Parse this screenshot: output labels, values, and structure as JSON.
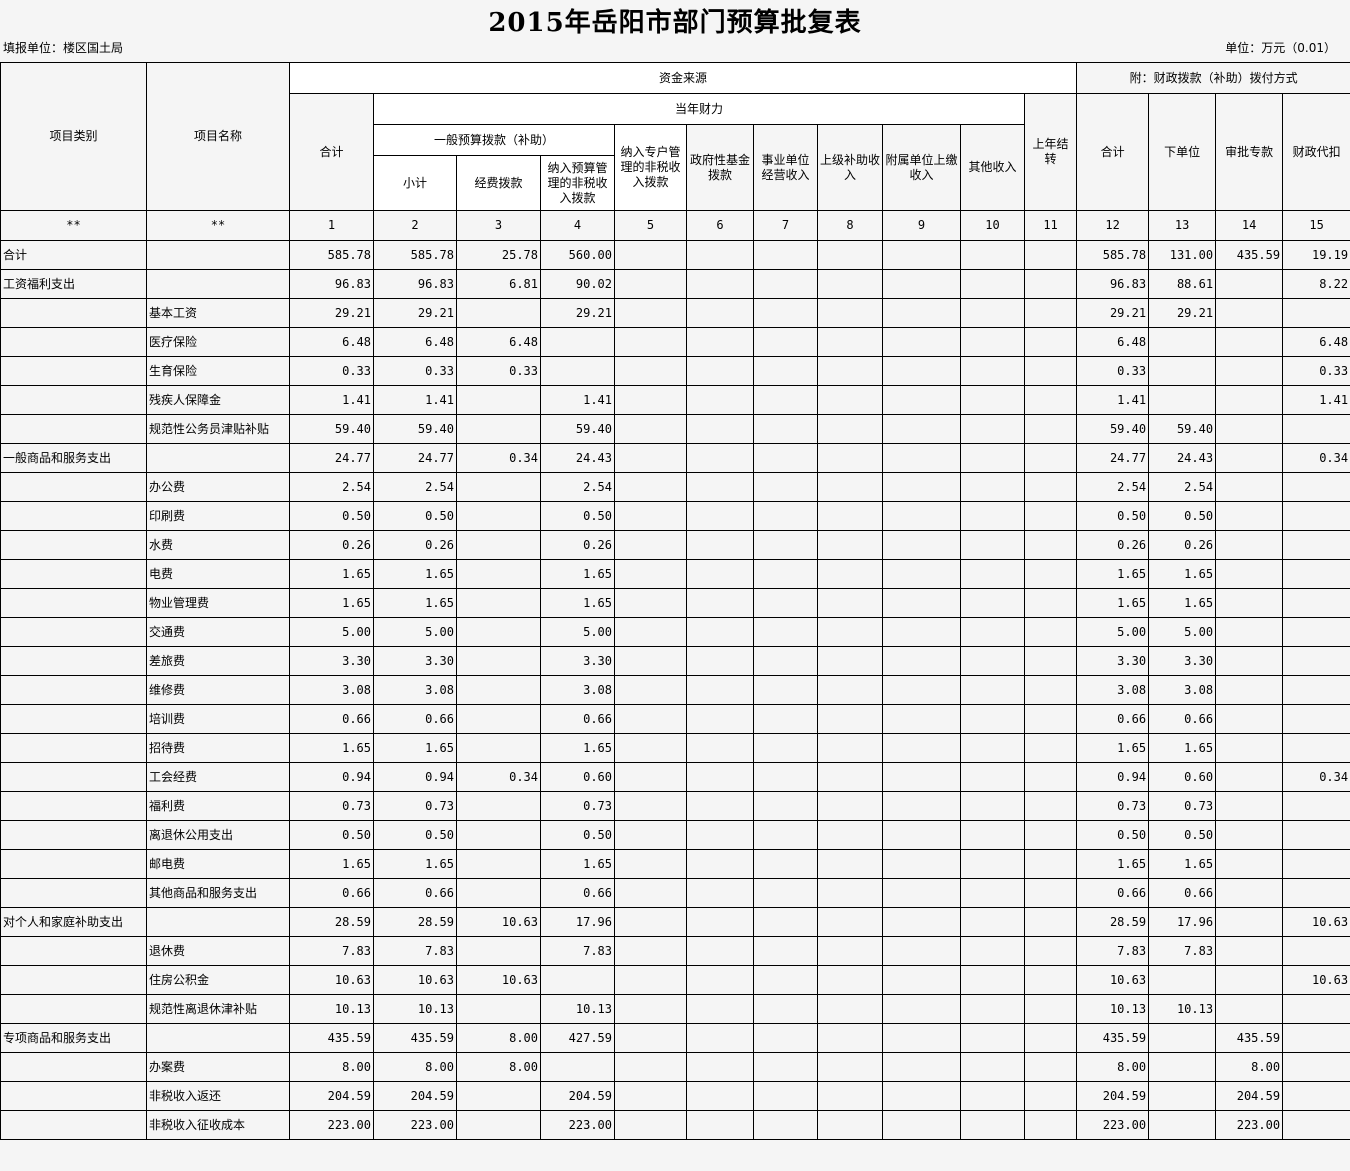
{
  "title": "2015年岳阳市部门预算批复表",
  "reporting_unit": "填报单位：楼区国土局",
  "unit": "单位：万元（0.01）",
  "header": {
    "category": "项目类别",
    "name": "项目名称",
    "fund_source": "资金来源",
    "attachment": "附：财政拨款（补助）拨付方式",
    "total": "合计",
    "current_year": "当年财力",
    "general_budget": "一般预算拨款（补助）",
    "subtotal": "小计",
    "operating_funds": "经费拨款",
    "budget_nontax": "纳入预算管理的非税收入拨款",
    "special_nontax": "纳入专户管理的非税收入拨款",
    "gov_fund": "政府性基金拨款",
    "business_income": "事业单位经营收入",
    "superior_subsidy": "上级补助收入",
    "affiliate_income": "附属单位上缴收入",
    "other_income": "其他收入",
    "carryover": "上年结转",
    "pay_total": "合计",
    "subordinate": "下单位",
    "approved_special": "审批专款",
    "fiscal_withhold": "财政代扣",
    "index_row": [
      "**",
      "**",
      "1",
      "2",
      "3",
      "4",
      "5",
      "6",
      "7",
      "8",
      "9",
      "10",
      "11",
      "12",
      "13",
      "14",
      "15"
    ]
  },
  "rows": [
    [
      "合计",
      "",
      "585.78",
      "585.78",
      "25.78",
      "560.00",
      "585.78",
      "131.00",
      "435.59",
      "19.19"
    ],
    [
      "工资福利支出",
      "",
      "96.83",
      "96.83",
      "6.81",
      "90.02",
      "96.83",
      "88.61",
      "",
      "8.22"
    ],
    [
      "",
      "基本工资",
      "29.21",
      "29.21",
      "",
      "29.21",
      "29.21",
      "29.21",
      "",
      ""
    ],
    [
      "",
      "医疗保险",
      "6.48",
      "6.48",
      "6.48",
      "",
      "6.48",
      "",
      "",
      "6.48"
    ],
    [
      "",
      "生育保险",
      "0.33",
      "0.33",
      "0.33",
      "",
      "0.33",
      "",
      "",
      "0.33"
    ],
    [
      "",
      "残疾人保障金",
      "1.41",
      "1.41",
      "",
      "1.41",
      "1.41",
      "",
      "",
      "1.41"
    ],
    [
      "",
      "规范性公务员津贴补贴",
      "59.40",
      "59.40",
      "",
      "59.40",
      "59.40",
      "59.40",
      "",
      ""
    ],
    [
      "一般商品和服务支出",
      "",
      "24.77",
      "24.77",
      "0.34",
      "24.43",
      "24.77",
      "24.43",
      "",
      "0.34"
    ],
    [
      "",
      "办公费",
      "2.54",
      "2.54",
      "",
      "2.54",
      "2.54",
      "2.54",
      "",
      ""
    ],
    [
      "",
      "印刷费",
      "0.50",
      "0.50",
      "",
      "0.50",
      "0.50",
      "0.50",
      "",
      ""
    ],
    [
      "",
      "水费",
      "0.26",
      "0.26",
      "",
      "0.26",
      "0.26",
      "0.26",
      "",
      ""
    ],
    [
      "",
      "电费",
      "1.65",
      "1.65",
      "",
      "1.65",
      "1.65",
      "1.65",
      "",
      ""
    ],
    [
      "",
      "物业管理费",
      "1.65",
      "1.65",
      "",
      "1.65",
      "1.65",
      "1.65",
      "",
      ""
    ],
    [
      "",
      "交通费",
      "5.00",
      "5.00",
      "",
      "5.00",
      "5.00",
      "5.00",
      "",
      ""
    ],
    [
      "",
      "差旅费",
      "3.30",
      "3.30",
      "",
      "3.30",
      "3.30",
      "3.30",
      "",
      ""
    ],
    [
      "",
      "维修费",
      "3.08",
      "3.08",
      "",
      "3.08",
      "3.08",
      "3.08",
      "",
      ""
    ],
    [
      "",
      "培训费",
      "0.66",
      "0.66",
      "",
      "0.66",
      "0.66",
      "0.66",
      "",
      ""
    ],
    [
      "",
      "招待费",
      "1.65",
      "1.65",
      "",
      "1.65",
      "1.65",
      "1.65",
      "",
      ""
    ],
    [
      "",
      "工会经费",
      "0.94",
      "0.94",
      "0.34",
      "0.60",
      "0.94",
      "0.60",
      "",
      "0.34"
    ],
    [
      "",
      "福利费",
      "0.73",
      "0.73",
      "",
      "0.73",
      "0.73",
      "0.73",
      "",
      ""
    ],
    [
      "",
      "离退休公用支出",
      "0.50",
      "0.50",
      "",
      "0.50",
      "0.50",
      "0.50",
      "",
      ""
    ],
    [
      "",
      "邮电费",
      "1.65",
      "1.65",
      "",
      "1.65",
      "1.65",
      "1.65",
      "",
      ""
    ],
    [
      "",
      "其他商品和服务支出",
      "0.66",
      "0.66",
      "",
      "0.66",
      "0.66",
      "0.66",
      "",
      ""
    ],
    [
      "对个人和家庭补助支出",
      "",
      "28.59",
      "28.59",
      "10.63",
      "17.96",
      "28.59",
      "17.96",
      "",
      "10.63"
    ],
    [
      "",
      "退休费",
      "7.83",
      "7.83",
      "",
      "7.83",
      "7.83",
      "7.83",
      "",
      ""
    ],
    [
      "",
      "住房公积金",
      "10.63",
      "10.63",
      "10.63",
      "",
      "10.63",
      "",
      "",
      "10.63"
    ],
    [
      "",
      "规范性离退休津补贴",
      "10.13",
      "10.13",
      "",
      "10.13",
      "10.13",
      "10.13",
      "",
      ""
    ],
    [
      "专项商品和服务支出",
      "",
      "435.59",
      "435.59",
      "8.00",
      "427.59",
      "435.59",
      "",
      "435.59",
      ""
    ],
    [
      "",
      "办案费",
      "8.00",
      "8.00",
      "8.00",
      "",
      "8.00",
      "",
      "8.00",
      ""
    ],
    [
      "",
      "非税收入返还",
      "204.59",
      "204.59",
      "",
      "204.59",
      "204.59",
      "",
      "204.59",
      ""
    ],
    [
      "",
      "非税收入征收成本",
      "223.00",
      "223.00",
      "",
      "223.00",
      "223.00",
      "",
      "223.00",
      ""
    ]
  ]
}
